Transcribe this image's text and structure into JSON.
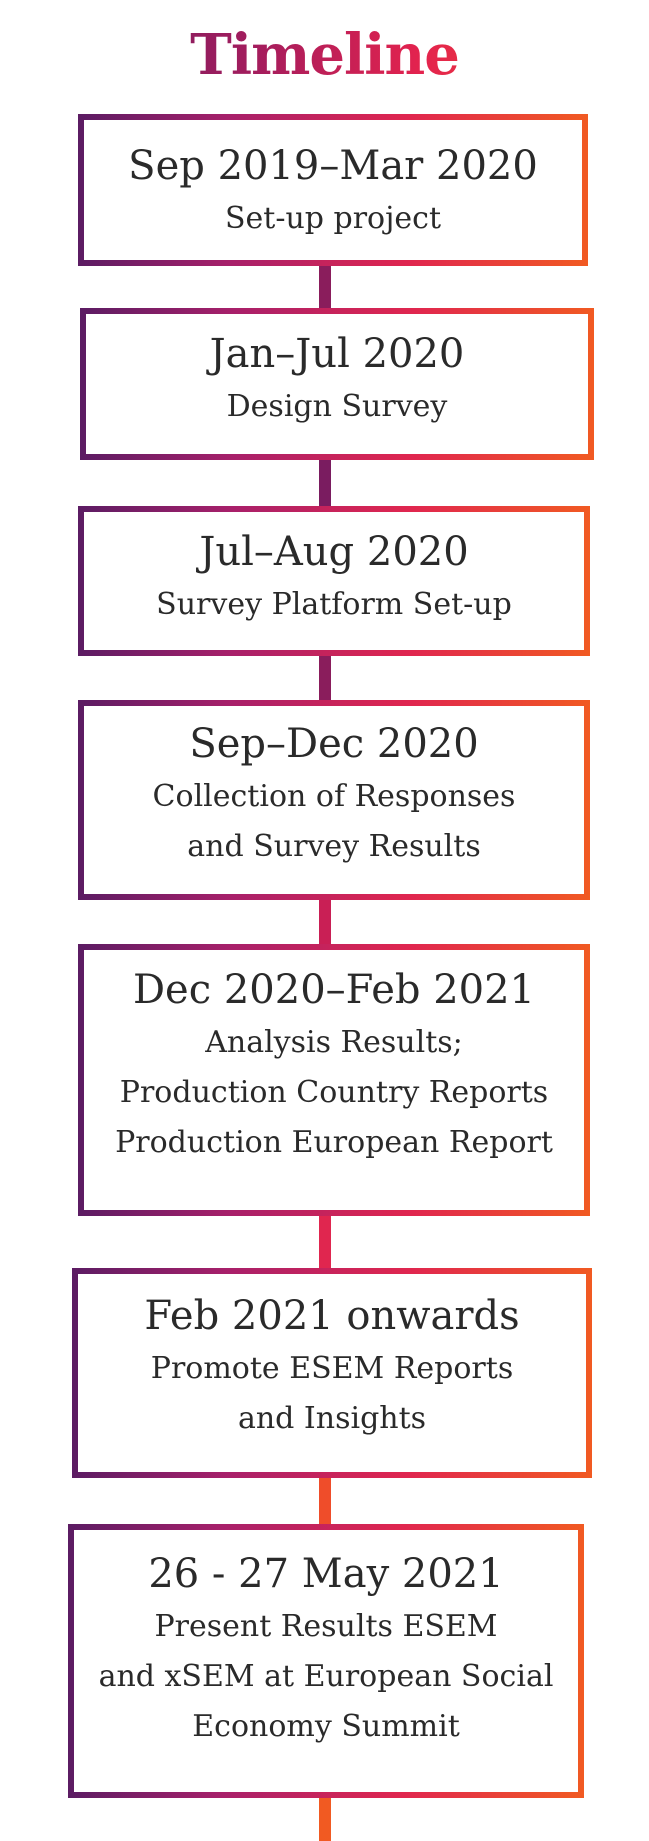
{
  "title": "Timeline",
  "items": [
    {
      "date": "Sep 2019–Mar 2020",
      "lines": [
        "Set-up project"
      ]
    },
    {
      "date": "Jan–Jul 2020",
      "lines": [
        "Design Survey"
      ]
    },
    {
      "date": "Jul–Aug 2020",
      "lines": [
        "Survey Platform Set-up"
      ]
    },
    {
      "date": "Sep–Dec 2020",
      "lines": [
        "Collection of Responses",
        "and Survey Results"
      ]
    },
    {
      "date": "Dec 2020–Feb 2021",
      "lines": [
        "Analysis Results;",
        "Production Country Reports",
        "Production European Report"
      ]
    },
    {
      "date": "Feb 2021 onwards",
      "lines": [
        "Promote ESEM Reports",
        "and Insights"
      ]
    },
    {
      "date": "26 - 27 May 2021",
      "lines": [
        "Present Results ESEM",
        "and xSEM at European Social",
        "Economy Summit"
      ]
    }
  ],
  "colors": {
    "gradient_start": "#5b1c63",
    "gradient_mid": "#e0264f",
    "gradient_end": "#f15a22",
    "text": "#2a2a2a"
  }
}
